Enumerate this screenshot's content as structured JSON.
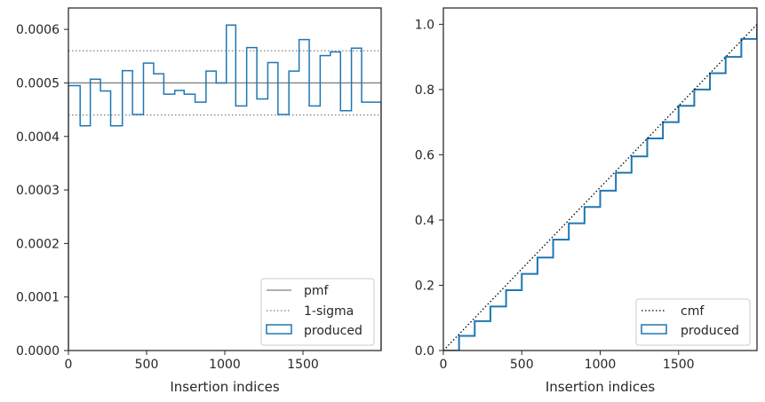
{
  "chart_data": [
    {
      "type": "step",
      "xlabel": "Insertion indices",
      "ylabel": "",
      "xlim": [
        0,
        2000
      ],
      "ylim": [
        0,
        0.00064
      ],
      "xticks": [
        0,
        500,
        1000,
        1500
      ],
      "xtick_labels": [
        "0",
        "500",
        "1000",
        "1500"
      ],
      "yticks": [
        0,
        0.0001,
        0.0002,
        0.0003,
        0.0004,
        0.0005,
        0.0006
      ],
      "ytick_labels": [
        "0.0000",
        "0.0001",
        "0.0002",
        "0.0003",
        "0.0004",
        "0.0005",
        "0.0006"
      ],
      "grid": false,
      "legend_position": "lower-right",
      "pmf": 0.0005,
      "sigma_band": [
        0.00044,
        0.00056
      ],
      "bin_edges": [
        0,
        75,
        140,
        205,
        270,
        345,
        410,
        480,
        545,
        610,
        680,
        740,
        810,
        880,
        945,
        1010,
        1070,
        1140,
        1205,
        1275,
        1340,
        1410,
        1475,
        1540,
        1610,
        1675,
        1740,
        1810,
        1875,
        1945,
        2000
      ],
      "values": [
        0.000495,
        0.00042,
        0.000507,
        0.000485,
        0.00042,
        0.000523,
        0.000441,
        0.000537,
        0.000517,
        0.000479,
        0.000486,
        0.000479,
        0.000464,
        0.000522,
        0.0005,
        0.000608,
        0.000457,
        0.000566,
        0.00047,
        0.000538,
        0.000441,
        0.000522,
        0.000581,
        0.000457,
        0.000551,
        0.000558,
        0.000448,
        0.000565,
        0.000464,
        0.000464
      ],
      "series": [
        {
          "name": "pmf",
          "color": "#808080",
          "style": "solid"
        },
        {
          "name": "1-sigma",
          "color": "#808080",
          "style": "dotted"
        },
        {
          "name": "produced",
          "color": "#1f77b4",
          "style": "step"
        }
      ]
    },
    {
      "type": "line",
      "xlabel": "Insertion indices",
      "ylabel": "",
      "xlim": [
        0,
        2000
      ],
      "ylim": [
        0,
        1.05
      ],
      "xticks": [
        0,
        500,
        1000,
        1500
      ],
      "xtick_labels": [
        "0",
        "500",
        "1000",
        "1500"
      ],
      "yticks": [
        0,
        0.2,
        0.4,
        0.6,
        0.8,
        1.0
      ],
      "ytick_labels": [
        "0.0",
        "0.2",
        "0.4",
        "0.6",
        "0.8",
        "1.0"
      ],
      "grid": false,
      "legend_position": "lower-right",
      "cmf": {
        "x": [
          0,
          2000
        ],
        "y": [
          0,
          1.0
        ]
      },
      "produced": {
        "x": [
          0,
          100,
          200,
          300,
          400,
          500,
          600,
          700,
          800,
          900,
          1000,
          1100,
          1200,
          1300,
          1400,
          1500,
          1600,
          1700,
          1800,
          1900,
          2000
        ],
        "y": [
          0,
          0.045,
          0.09,
          0.135,
          0.185,
          0.235,
          0.285,
          0.34,
          0.39,
          0.44,
          0.49,
          0.545,
          0.595,
          0.65,
          0.7,
          0.75,
          0.8,
          0.85,
          0.9,
          0.955,
          1.0
        ]
      },
      "series": [
        {
          "name": "cmf",
          "color": "#000000",
          "style": "dotted"
        },
        {
          "name": "produced",
          "color": "#1f77b4",
          "style": "step"
        }
      ]
    }
  ]
}
